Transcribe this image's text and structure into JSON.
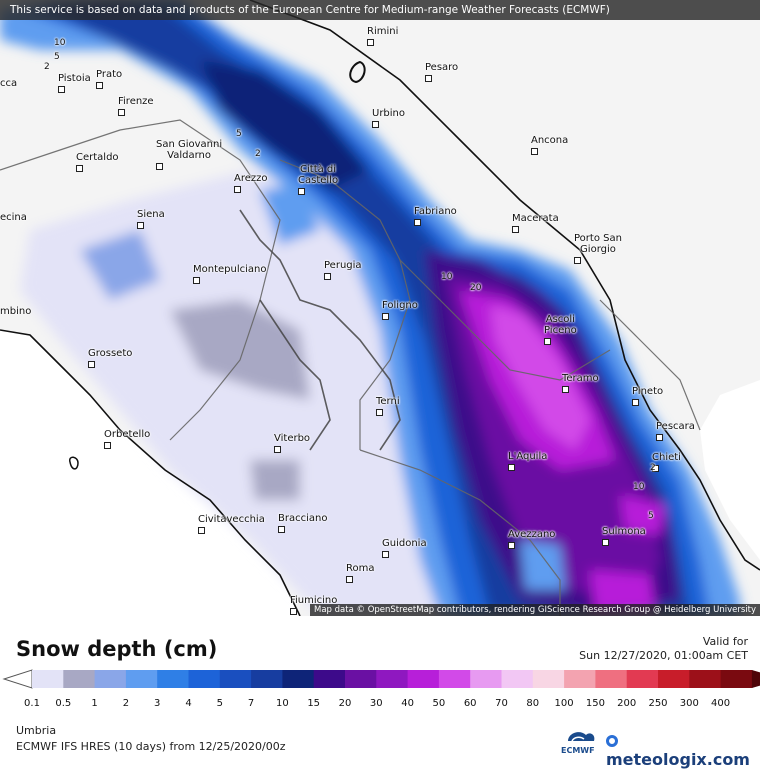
{
  "banner": "This service is based on data and products of the European Centre for Medium-range Weather Forecasts (ECMWF)",
  "attribution": "Map data © OpenStreetMap contributors, rendering GIScience Research Group @ Heidelberg University",
  "cities": [
    {
      "id": "rimini",
      "name": "Rimini"
    },
    {
      "id": "pesaro",
      "name": "Pesaro"
    },
    {
      "id": "urbino",
      "name": "Urbino"
    },
    {
      "id": "ancona",
      "name": "Ancona"
    },
    {
      "id": "prato",
      "name": "Prato"
    },
    {
      "id": "pistoia",
      "name": "Pistoia"
    },
    {
      "id": "firenze",
      "name": "Firenze"
    },
    {
      "id": "certaldo",
      "name": "Certaldo"
    },
    {
      "id": "sgv1",
      "name": "San Giovanni"
    },
    {
      "id": "sgv2",
      "name": "Valdarno"
    },
    {
      "id": "arezzo",
      "name": "Arezzo"
    },
    {
      "id": "cdc1",
      "name": "Città di"
    },
    {
      "id": "cdc2",
      "name": "Castello"
    },
    {
      "id": "siena",
      "name": "Siena"
    },
    {
      "id": "fabriano",
      "name": "Fabriano"
    },
    {
      "id": "macerata",
      "name": "Macerata"
    },
    {
      "id": "psg1",
      "name": "Porto San"
    },
    {
      "id": "psg2",
      "name": "Giorgio"
    },
    {
      "id": "montepulciano",
      "name": "Montepulciano"
    },
    {
      "id": "perugia",
      "name": "Perugia"
    },
    {
      "id": "foligno",
      "name": "Foligno"
    },
    {
      "id": "ascoli1",
      "name": "Ascoli"
    },
    {
      "id": "ascoli2",
      "name": "Piceno"
    },
    {
      "id": "grosseto",
      "name": "Grosseto"
    },
    {
      "id": "teramo",
      "name": "Teramo"
    },
    {
      "id": "pineto",
      "name": "Pineto"
    },
    {
      "id": "terni",
      "name": "Terni"
    },
    {
      "id": "pescara",
      "name": "Pescara"
    },
    {
      "id": "orbetello",
      "name": "Orbetello"
    },
    {
      "id": "viterbo",
      "name": "Viterbo"
    },
    {
      "id": "laquila",
      "name": "L'Aquila"
    },
    {
      "id": "chieti",
      "name": "Chieti"
    },
    {
      "id": "civitavecchia",
      "name": "Civitavecchia"
    },
    {
      "id": "bracciano",
      "name": "Bracciano"
    },
    {
      "id": "avezzano",
      "name": "Avezzano"
    },
    {
      "id": "sulmona",
      "name": "Sulmona"
    },
    {
      "id": "guidonia",
      "name": "Guidonia"
    },
    {
      "id": "roma",
      "name": "Roma"
    },
    {
      "id": "fiumicino",
      "name": "Fiumicino"
    },
    {
      "id": "ecina",
      "name": "ecina"
    },
    {
      "id": "cca",
      "name": "cca"
    },
    {
      "id": "mbino",
      "name": "mbino"
    }
  ],
  "contour_labels": [
    "10",
    "5",
    "2",
    "5",
    "2",
    "10",
    "20",
    "2",
    "10",
    "5"
  ],
  "legend": {
    "title": "Snow depth (cm)",
    "valid_label": "Valid for",
    "valid_time": "Sun 12/27/2020, 01:00am CET",
    "ticks": [
      "0.1",
      "0.5",
      "1",
      "2",
      "3",
      "4",
      "5",
      "7",
      "10",
      "15",
      "20",
      "30",
      "40",
      "50",
      "60",
      "70",
      "80",
      "100",
      "150",
      "200",
      "250",
      "300",
      "400"
    ],
    "colors": [
      "#e3e3f7",
      "#a8a8c4",
      "#8aa6e8",
      "#5f9df0",
      "#2f7fe6",
      "#1d63d8",
      "#1a4fbf",
      "#173da0",
      "#0e2478",
      "#3d0a8a",
      "#6a10a3",
      "#8f18c0",
      "#b71fd9",
      "#d24ae8",
      "#e79af1",
      "#f2c7f4",
      "#f8d6e4",
      "#f3a3b0",
      "#ef6f80",
      "#e23a52",
      "#c81d2a",
      "#9c1019",
      "#7a0a10",
      "#4f0508"
    ]
  },
  "region": "Umbria",
  "model": "ECMWF IFS HRES (10 days) from 12/25/2020/00z",
  "logos": {
    "ecmwf": "ECMWF",
    "meteologix": "meteologix.com"
  }
}
